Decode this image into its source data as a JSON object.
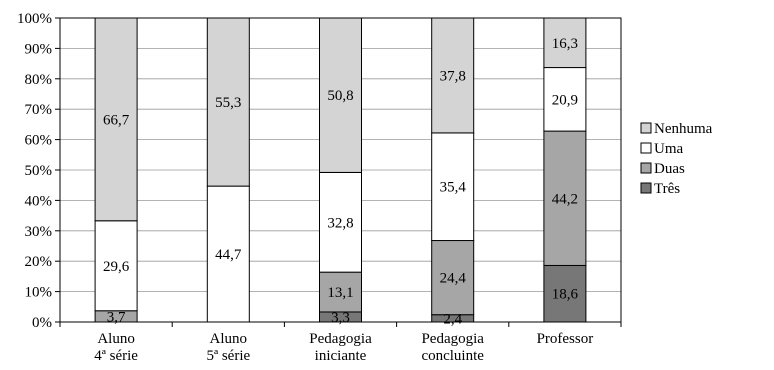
{
  "chart_data": {
    "type": "bar",
    "stacked": true,
    "percent": true,
    "title": "",
    "xlabel": "",
    "ylabel": "",
    "ylim": [
      0,
      100
    ],
    "yticks": [
      "0%",
      "10%",
      "20%",
      "30%",
      "40%",
      "50%",
      "60%",
      "70%",
      "80%",
      "90%",
      "100%"
    ],
    "categories": [
      [
        "Aluno",
        "4ª série"
      ],
      [
        "Aluno",
        "5ª série"
      ],
      [
        "Pedagogia",
        "iniciante"
      ],
      [
        "Pedagogia",
        "concluinte"
      ],
      [
        "Professor"
      ]
    ],
    "series": [
      {
        "name": "Três",
        "color": "#777777",
        "values": [
          0,
          0,
          3.3,
          2.4,
          18.6
        ],
        "labels": [
          "",
          "",
          "3,3",
          "2,4",
          "18,6"
        ]
      },
      {
        "name": "Duas",
        "color": "#a6a6a6",
        "values": [
          3.7,
          0,
          13.1,
          24.4,
          44.2
        ],
        "labels": [
          "3,7",
          "",
          "13,1",
          "24,4",
          "44,2"
        ]
      },
      {
        "name": "Uma",
        "color": "#ffffff",
        "values": [
          29.6,
          44.7,
          32.8,
          35.4,
          20.9
        ],
        "labels": [
          "29,6",
          "44,7",
          "32,8",
          "35,4",
          "20,9"
        ]
      },
      {
        "name": "Nenhuma",
        "color": "#d4d4d4",
        "values": [
          66.7,
          55.3,
          50.8,
          37.8,
          16.3
        ],
        "labels": [
          "66,7",
          "55,3",
          "50,8",
          "37,8",
          "16,3"
        ]
      }
    ],
    "legend": {
      "position": "right",
      "order": [
        "Nenhuma",
        "Uma",
        "Duas",
        "Três"
      ]
    },
    "grid": true
  }
}
